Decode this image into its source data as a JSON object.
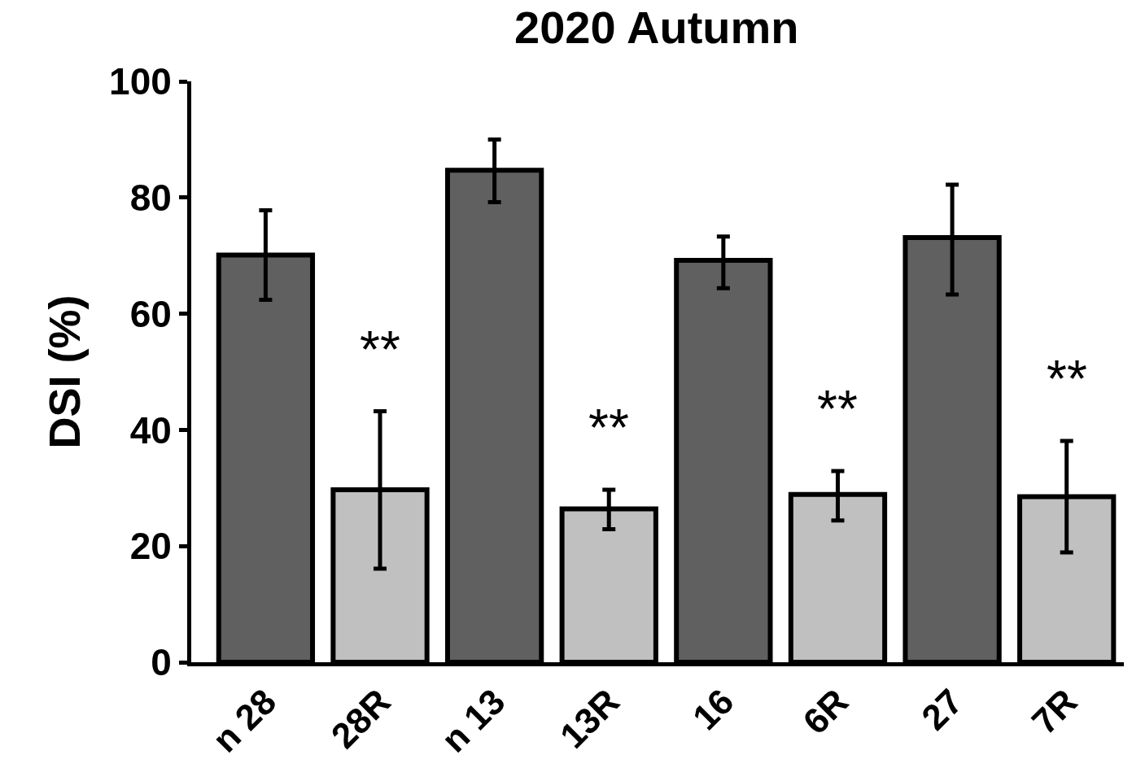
{
  "chart_data": {
    "type": "bar",
    "title": "2020 Autumn",
    "ylabel": "DSI (%)",
    "categories": [
      "n 28",
      "28R",
      "n 13",
      "13R",
      "16",
      "6R",
      "27",
      "7R"
    ],
    "values": [
      70.1,
      29.7,
      84.7,
      26.4,
      69.2,
      28.9,
      73.1,
      28.5
    ],
    "colors": [
      "#606060",
      "#c0c0c0",
      "#606060",
      "#c0c0c0",
      "#606060",
      "#c0c0c0",
      "#606060",
      "#c0c0c0"
    ],
    "errors": [
      [
        62.4,
        77.8
      ],
      [
        16.1,
        43.2
      ],
      [
        79.2,
        90.0
      ],
      [
        22.9,
        29.7
      ],
      [
        64.4,
        73.3
      ],
      [
        24.4,
        32.9
      ],
      [
        63.3,
        82.2
      ],
      [
        18.9,
        38.1
      ]
    ],
    "annotations": [
      "**",
      "**",
      "**",
      "**"
    ],
    "ylim": [
      0,
      100
    ],
    "yticks": [
      0,
      20,
      40,
      60,
      80,
      100
    ]
  }
}
